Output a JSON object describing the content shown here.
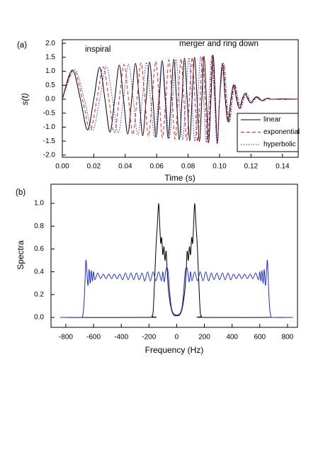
{
  "chart_data": [
    {
      "type": "line",
      "panel_label": "(a)",
      "annotations": [
        "inspiral",
        "merger and ring down"
      ],
      "xlabel": "Time (s)",
      "ylabel": "s(t)",
      "xlim": [
        0,
        0.15
      ],
      "ylim": [
        -2.08,
        2.13
      ],
      "xticks": [
        {
          "value": 0,
          "label": "0.00"
        },
        {
          "value": 0.02,
          "label": "0.02"
        },
        {
          "value": 0.04,
          "label": "0.04"
        },
        {
          "value": 0.06,
          "label": "0.06"
        },
        {
          "value": 0.08,
          "label": "0.08"
        },
        {
          "value": 0.1,
          "label": "0.10"
        },
        {
          "value": 0.12,
          "label": "0.12"
        },
        {
          "value": 0.14,
          "label": "0.14"
        }
      ],
      "yticks": [
        {
          "value": -2,
          "label": "-2.0"
        },
        {
          "value": -1.5,
          "label": "-1.5"
        },
        {
          "value": -1,
          "label": "-1.0"
        },
        {
          "value": -0.5,
          "label": "-0.5"
        },
        {
          "value": 0,
          "label": "0.0"
        },
        {
          "value": 0.5,
          "label": "0.5"
        },
        {
          "value": 1,
          "label": "1.0"
        },
        {
          "value": 1.5,
          "label": "1.5"
        },
        {
          "value": 2,
          "label": "2.0"
        }
      ],
      "legend": "lower right",
      "series": [
        {
          "name": "linear",
          "color": "#000000",
          "dash": "solid",
          "x": [
            0,
            0.0063,
            0.0115,
            0.016,
            0.02,
            0.0237,
            0.0271,
            0.0303,
            0.0333,
            0.0362,
            0.0389,
            0.0416,
            0.0441,
            0.0465,
            0.0489,
            0.0511,
            0.0533,
            0.0555,
            0.0576,
            0.0596,
            0.0616,
            0.0635,
            0.0654,
            0.0673,
            0.0691,
            0.0709,
            0.0726,
            0.0744,
            0.0761,
            0.0777,
            0.0794,
            0.081,
            0.0825,
            0.0841,
            0.0857,
            0.0872,
            0.0887,
            0.0901,
            0.0916,
            0.093,
            0.0945,
            0.0959,
            0.0973,
            0.0986,
            0.1,
            0.1018,
            0.1036,
            0.1054,
            0.1072,
            0.109,
            0.1108,
            0.1126,
            0.1144,
            0.1162,
            0.118,
            0.1198,
            0.1216,
            0.1234,
            0.1252,
            0.127,
            0.1288,
            0.1306,
            0.1324,
            0.14,
            0.15
          ],
          "values": [
            0,
            1.04,
            0,
            -1.1,
            0,
            1.14,
            0,
            -1.18,
            0,
            1.22,
            0,
            -1.25,
            0,
            1.28,
            0,
            -1.31,
            0,
            1.33,
            0,
            -1.36,
            0,
            1.38,
            0,
            -1.4,
            0,
            1.43,
            0,
            -1.45,
            0,
            1.47,
            0,
            -1.49,
            0,
            1.5,
            0,
            -1.52,
            0,
            1.54,
            0,
            -1.56,
            0,
            1.58,
            0,
            -1.59,
            0,
            1.28,
            0,
            -0.81,
            0,
            0.52,
            0,
            -0.33,
            0,
            0.21,
            0,
            -0.13,
            0,
            0.09,
            0,
            -0.05,
            0,
            0.03,
            0,
            0.01,
            0
          ]
        },
        {
          "name": "exponential",
          "color": "#e8202a",
          "dash": "dashed",
          "x": [
            0,
            0.0071,
            0.0128,
            0.0177,
            0.022,
            0.026,
            0.0296,
            0.033,
            0.0362,
            0.0392,
            0.0421,
            0.0448,
            0.0475,
            0.05,
            0.0525,
            0.0548,
            0.0571,
            0.0594,
            0.0616,
            0.0637,
            0.0658,
            0.0678,
            0.0698,
            0.0717,
            0.0736,
            0.0755,
            0.0773,
            0.0791,
            0.0808,
            0.0826,
            0.0843,
            0.086,
            0.0876,
            0.0892,
            0.0908,
            0.0924,
            0.094,
            0.0955,
            0.097,
            0.0985,
            0.1,
            0.1023,
            0.1041,
            0.1059,
            0.1077,
            0.1095,
            0.1113,
            0.1131,
            0.1149,
            0.1167,
            0.1185,
            0.1203,
            0.1221,
            0.1239,
            0.1257,
            0.1275,
            0.1293,
            0.1311,
            0.1329,
            0.14,
            0.15
          ],
          "values": [
            0,
            1.04,
            0,
            -1.11,
            0,
            1.16,
            0,
            -1.2,
            0,
            1.24,
            0,
            -1.27,
            0,
            1.3,
            0,
            -1.33,
            0,
            1.36,
            0,
            -1.38,
            0,
            1.41,
            0,
            -1.43,
            0,
            1.45,
            0,
            -1.47,
            0,
            1.5,
            0,
            -1.52,
            0,
            1.54,
            0,
            -1.55,
            0,
            1.57,
            0,
            -1.59,
            0,
            1.3,
            0,
            -0.83,
            0,
            0.53,
            0,
            -0.34,
            0,
            0.22,
            0,
            -0.14,
            0,
            0.09,
            0,
            -0.06,
            0,
            0.04,
            0,
            -0.01,
            0
          ]
        },
        {
          "name": "hyperbolic",
          "color": "#2b2bd6",
          "dash": "dotted",
          "x": [
            0,
            0.0078,
            0.014,
            0.0192,
            0.0238,
            0.028,
            0.0319,
            0.0355,
            0.0389,
            0.0421,
            0.0451,
            0.048,
            0.0508,
            0.0535,
            0.0561,
            0.0586,
            0.0611,
            0.0635,
            0.0658,
            0.068,
            0.0702,
            0.0723,
            0.0744,
            0.0765,
            0.0785,
            0.0805,
            0.0824,
            0.0843,
            0.0861,
            0.088,
            0.0898,
            0.0915,
            0.0933,
            0.095,
            0.0967,
            0.0984,
            0.1,
            0.1028,
            0.1046,
            0.1064,
            0.1082,
            0.11,
            0.1118,
            0.1136,
            0.1154,
            0.1172,
            0.119,
            0.1208,
            0.1226,
            0.1244,
            0.1262,
            0.128,
            0.1298,
            0.1316,
            0.1334,
            0.14,
            0.15
          ],
          "values": [
            0,
            1.05,
            0,
            -1.12,
            0,
            1.17,
            0,
            -1.21,
            0,
            1.25,
            0,
            -1.29,
            0,
            1.32,
            0,
            -1.35,
            0,
            1.38,
            0,
            -1.41,
            0,
            1.43,
            0,
            -1.46,
            0,
            1.48,
            0,
            -1.51,
            0,
            1.53,
            0,
            -1.55,
            0,
            1.57,
            0,
            -1.59,
            0,
            1.25,
            0,
            -0.8,
            0,
            0.5,
            0,
            -0.32,
            0,
            0.2,
            0,
            -0.13,
            0,
            0.08,
            0,
            -0.05,
            0,
            0.03,
            0,
            0.01,
            0
          ]
        }
      ]
    },
    {
      "type": "line",
      "panel_label": "(b)",
      "xlabel": "Frequency (Hz)",
      "ylabel": "Spectra",
      "xlim": [
        -907,
        872
      ],
      "ylim": [
        -0.087,
        1.168
      ],
      "xticks": [
        -800,
        -600,
        -400,
        -200,
        0,
        200,
        400,
        600,
        800
      ],
      "yticks": [
        {
          "value": 0,
          "label": "0.0"
        },
        {
          "value": 0.2,
          "label": "0.2"
        },
        {
          "value": 0.4,
          "label": "0.4"
        },
        {
          "value": 0.6,
          "label": "0.6"
        },
        {
          "value": 0.8,
          "label": "0.8"
        },
        {
          "value": 1,
          "label": "1.0"
        }
      ],
      "series": [
        {
          "color": "#000000",
          "dash": "solid",
          "x": [
            -840,
            -200,
            -180,
            -170,
            -160,
            -150,
            -140,
            -130,
            -122,
            -115,
            -108,
            -100,
            -92,
            -84,
            -76,
            -68,
            -60,
            -50,
            -40,
            -30,
            -20,
            0,
            20,
            30,
            40,
            50,
            60,
            68,
            76,
            84,
            92,
            100,
            108,
            115,
            122,
            130,
            140,
            150,
            160,
            170,
            180,
            200,
            840
          ],
          "values": [
            0,
            0,
            0.01,
            0.05,
            0.3,
            0.6,
            0.8,
            1.0,
            0.8,
            0.65,
            0.7,
            0.55,
            0.62,
            0.5,
            0.58,
            0.4,
            0.25,
            0.15,
            0.08,
            0.04,
            0.02,
            0.015,
            0.02,
            0.04,
            0.08,
            0.15,
            0.25,
            0.4,
            0.58,
            0.5,
            0.62,
            0.55,
            0.7,
            0.65,
            0.8,
            1.0,
            0.8,
            0.6,
            0.3,
            0.05,
            0.01,
            0,
            0
          ]
        },
        {
          "color": "#1f2fd0",
          "dash": "solid",
          "x": [
            -840,
            -700,
            -680,
            -670,
            -662,
            -655,
            -648,
            -640,
            -632,
            -624,
            -616,
            -608,
            -600,
            -590,
            -570,
            -550,
            -530,
            -510,
            -490,
            -470,
            -450,
            -430,
            -410,
            -390,
            -370,
            -350,
            -330,
            -310,
            -290,
            -270,
            -250,
            -230,
            -210,
            -190,
            -170,
            -150,
            -130,
            -110,
            -100,
            -90,
            -80,
            -70,
            -60,
            -50,
            -40,
            -30,
            -20,
            0,
            20,
            30,
            40,
            50,
            60,
            70,
            80,
            90,
            100,
            110,
            130,
            150,
            170,
            190,
            210,
            230,
            250,
            270,
            290,
            310,
            330,
            350,
            370,
            390,
            410,
            430,
            450,
            470,
            490,
            510,
            530,
            550,
            570,
            590,
            600,
            608,
            616,
            624,
            632,
            640,
            648,
            655,
            662,
            670,
            680,
            700,
            840
          ],
          "values": [
            0,
            0,
            0.01,
            0.1,
            0.3,
            0.5,
            0.4,
            0.28,
            0.42,
            0.3,
            0.41,
            0.32,
            0.4,
            0.33,
            0.39,
            0.34,
            0.38,
            0.34,
            0.38,
            0.34,
            0.38,
            0.34,
            0.38,
            0.33,
            0.39,
            0.33,
            0.39,
            0.33,
            0.39,
            0.33,
            0.39,
            0.32,
            0.4,
            0.32,
            0.4,
            0.32,
            0.4,
            0.32,
            0.4,
            0.31,
            0.4,
            0.44,
            0.38,
            0.22,
            0.1,
            0.05,
            0.03,
            0.02,
            0.03,
            0.05,
            0.1,
            0.22,
            0.38,
            0.44,
            0.4,
            0.31,
            0.4,
            0.32,
            0.4,
            0.32,
            0.4,
            0.32,
            0.4,
            0.32,
            0.39,
            0.33,
            0.39,
            0.33,
            0.39,
            0.33,
            0.39,
            0.33,
            0.38,
            0.34,
            0.38,
            0.34,
            0.38,
            0.34,
            0.38,
            0.34,
            0.39,
            0.33,
            0.4,
            0.32,
            0.41,
            0.3,
            0.42,
            0.28,
            0.4,
            0.5,
            0.3,
            0.1,
            0.01,
            0,
            0
          ]
        }
      ]
    }
  ]
}
